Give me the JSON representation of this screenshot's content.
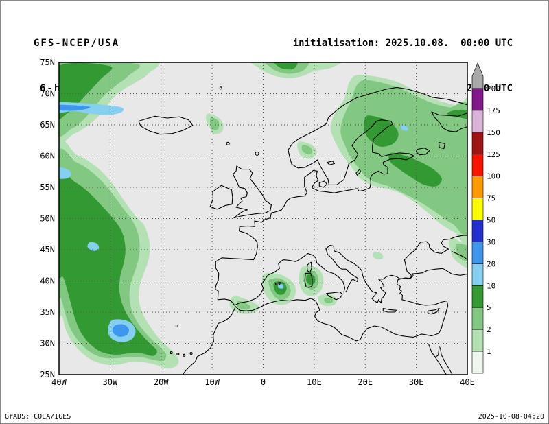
{
  "header": {
    "model": "GFS-NCEP/USA",
    "field": "6-h Acc.Prec.",
    "init": "initialisation: 2025.10.08.  00:00 UTC",
    "valid": "valid(+132h): 2025.OCT.13 12:00 UTC"
  },
  "axes": {
    "lat_labels": [
      "75N",
      "70N",
      "65N",
      "60N",
      "55N",
      "50N",
      "45N",
      "40N",
      "35N",
      "30N",
      "25N"
    ],
    "lon_labels": [
      "40W",
      "30W",
      "20W",
      "10W",
      "0",
      "10E",
      "20E",
      "30E",
      "40E"
    ]
  },
  "colorbar": {
    "labels_top_to_bottom": [
      "200",
      "175",
      "150",
      "125",
      "100",
      "75",
      "50",
      "30",
      "20",
      "10",
      "5",
      "2",
      "1"
    ],
    "segment_colors_bottom_to_top": [
      "#edf8ed",
      "#b4e1b4",
      "#82c882",
      "#339933",
      "#85cff0",
      "#3e97ee",
      "#2230d0",
      "#fcfc00",
      "#ff9900",
      "#f81500",
      "#a01414",
      "#d9b3d9",
      "#821a8c"
    ],
    "overflow_arrow_color": "#a8a8a8"
  },
  "footer": {
    "left": "GrADS: COLA/IGES",
    "right": "2025-10-08-04:20"
  },
  "chart_data": {
    "type": "heatmap",
    "title": "GFS-NCEP/USA 6-h accumulated precipitation, valid(+132h) 2025.OCT.13 12:00 UTC",
    "projection": "lat-lon",
    "lat_range": [
      25,
      75
    ],
    "lon_range": [
      -40,
      40
    ],
    "shading_levels": [
      1,
      2,
      5,
      10,
      20,
      30,
      50,
      75,
      100,
      125,
      150,
      175,
      200
    ],
    "background_no_precip_color": "#e8e8e8",
    "regions": [
      {
        "name": "North Atlantic frontal band (upper-left)",
        "approx_lat": [
          62,
          75
        ],
        "approx_lon": [
          -40,
          -21
        ],
        "peak_band": "20-30",
        "note": "broad green area, light/medium blue core near 67-68N at the west edge"
      },
      {
        "name": "Central North Atlantic comma system",
        "approx_lat": [
          26,
          61
        ],
        "approx_lon": [
          -40,
          -17
        ],
        "peak_band": "20-30",
        "note": "large green comma, blue core near 32N 27W north of the Canaries"
      },
      {
        "name": "Arctic blob north of Norwegian Sea",
        "approx_lat": [
          72.5,
          75
        ],
        "approx_lon": [
          -2,
          14
        ],
        "peak_band": "5-10"
      },
      {
        "name": "Norwegian Sea streak",
        "approx_lat": [
          63.5,
          67
        ],
        "approx_lon": [
          -11,
          -8
        ],
        "peak_band": "2-5"
      },
      {
        "name": "Scandinavia / Baltic / NW Russia",
        "approx_lat": [
          47,
          73
        ],
        "approx_lon": [
          13,
          40
        ],
        "peak_band": "5-10",
        "note": "dark-green cores over Gulf of Bothnia, Finland and Baltic states"
      },
      {
        "name": "Southern Norway streak",
        "approx_lat": [
          59.5,
          62.5
        ],
        "approx_lon": [
          7,
          10.5
        ],
        "peak_band": "2-5"
      },
      {
        "name": "Balearic Sea",
        "approx_lat": [
          36,
          41.5
        ],
        "approx_lon": [
          0,
          6.5
        ],
        "peak_band": "10-20"
      },
      {
        "name": "Sardinia / Corsica",
        "approx_lat": [
          37.5,
          42.5
        ],
        "approx_lon": [
          7,
          12
        ],
        "peak_band": "5-10"
      },
      {
        "name": "Alboran Sea / Morocco coast",
        "approx_lat": [
          34.5,
          37.5
        ],
        "approx_lon": [
          -7,
          -1
        ],
        "peak_band": "2-5"
      },
      {
        "name": "Sicily area",
        "approx_lat": [
          36,
          38
        ],
        "approx_lon": [
          11,
          14.5
        ],
        "peak_band": "2-5"
      },
      {
        "name": "Eastern Black Sea / Caucasus edge",
        "approx_lat": [
          42,
          47
        ],
        "approx_lon": [
          36.5,
          40
        ],
        "peak_band": "2-5"
      },
      {
        "name": "Balkans spot",
        "approx_lat": [
          43.5,
          44.7
        ],
        "approx_lon": [
          21.5,
          23.5
        ],
        "peak_band": "1-2"
      }
    ]
  }
}
